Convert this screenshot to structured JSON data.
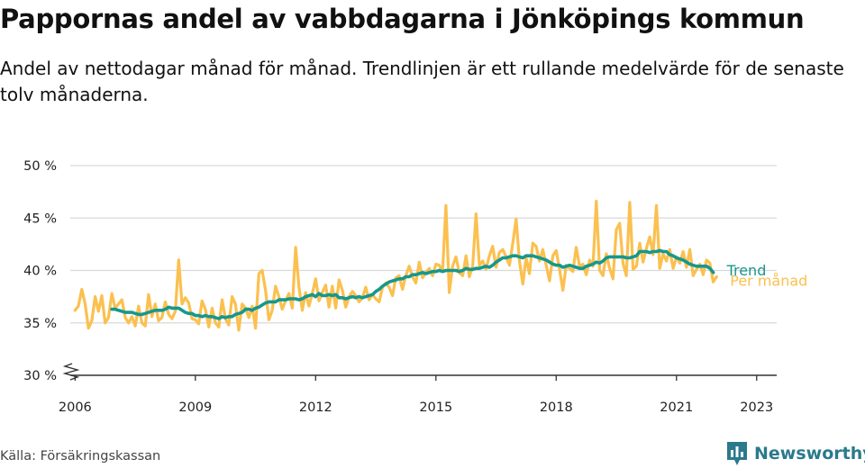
{
  "header": {
    "title": "Pappornas andel av vabbdagarna i Jönköpings kommun",
    "subtitle": "Andel av nettodagar månad för månad. Trendlinjen är ett rullande medelvärde för de senaste tolv månaderna."
  },
  "footer": {
    "source": "Källa: Försäkringskassan",
    "brand": "Newsworthy"
  },
  "colors": {
    "monthly": "#fbc04f",
    "trend": "#17978c",
    "grid": "#d9d9d9",
    "axis": "#333333",
    "brand": "#2a7a8c"
  },
  "chart_data": {
    "type": "line",
    "title": "Pappornas andel av vabbdagarna i Jönköpings kommun",
    "xlabel": "",
    "ylabel": "",
    "y_unit": "%",
    "ylim": [
      30,
      50
    ],
    "y_ticks": [
      "30 %",
      "35 %",
      "40 %",
      "45 %",
      "50 %"
    ],
    "y_tick_values": [
      30,
      35,
      40,
      45,
      50
    ],
    "x_ticks": [
      "2006",
      "2009",
      "2012",
      "2015",
      "2018",
      "2021",
      "2023"
    ],
    "x_tick_values": [
      2006,
      2009,
      2012,
      2015,
      2018,
      2021,
      2023
    ],
    "xlim": [
      2005.88,
      2023.5
    ],
    "grid": true,
    "series": [
      {
        "name": "Per månad",
        "x_start": 2006.0,
        "x_step": 0.0833333,
        "values": [
          36.2,
          36.6,
          38.2,
          36.8,
          34.5,
          35.2,
          37.5,
          36.1,
          37.6,
          35.0,
          35.5,
          37.8,
          36.4,
          36.8,
          37.2,
          35.5,
          35.0,
          35.6,
          34.7,
          36.6,
          35.0,
          34.7,
          37.7,
          35.6,
          36.8,
          35.2,
          35.5,
          37.0,
          35.8,
          35.4,
          36.1,
          41.0,
          36.8,
          37.4,
          36.9,
          35.4,
          35.3,
          34.9,
          37.1,
          36.3,
          34.6,
          36.4,
          35.0,
          34.6,
          37.2,
          35.4,
          34.8,
          37.5,
          36.8,
          34.3,
          36.8,
          36.4,
          35.5,
          36.6,
          34.5,
          39.7,
          40.0,
          38.1,
          35.3,
          36.2,
          38.5,
          37.5,
          36.3,
          37.1,
          37.8,
          36.4,
          42.2,
          38.4,
          36.2,
          37.9,
          36.6,
          37.8,
          39.2,
          37.1,
          37.9,
          38.6,
          36.5,
          38.5,
          36.4,
          39.1,
          38.1,
          36.5,
          37.5,
          38.0,
          37.6,
          37.0,
          37.4,
          38.4,
          37.2,
          37.7,
          37.3,
          37.0,
          38.4,
          38.8,
          38.4,
          37.6,
          39.3,
          39.5,
          38.2,
          39.5,
          40.4,
          39.4,
          38.8,
          40.8,
          39.3,
          39.8,
          40.2,
          39.5,
          40.6,
          40.5,
          39.9,
          46.2,
          37.9,
          40.4,
          41.3,
          39.8,
          39.5,
          41.4,
          39.4,
          40.4,
          45.4,
          40.5,
          40.9,
          40.1,
          41.4,
          42.3,
          40.3,
          41.7,
          42.0,
          41.3,
          40.5,
          42.6,
          44.9,
          40.9,
          38.7,
          41.2,
          39.7,
          42.6,
          42.3,
          40.9,
          42.0,
          40.5,
          39.0,
          41.4,
          41.9,
          40.1,
          38.1,
          40.5,
          40.2,
          39.9,
          42.2,
          40.4,
          40.6,
          39.6,
          41.0,
          40.4,
          46.6,
          40.0,
          39.5,
          41.6,
          40.2,
          39.2,
          43.9,
          44.5,
          40.7,
          39.5,
          46.5,
          40.1,
          40.4,
          42.6,
          40.8,
          42.1,
          43.2,
          41.5,
          46.2,
          40.2,
          41.6,
          40.9,
          42.0,
          40.2,
          41.3,
          40.7,
          41.8,
          40.3,
          42.0,
          39.5,
          40.1,
          40.6,
          39.6,
          41.0,
          40.7,
          38.9,
          39.4
        ]
      },
      {
        "name": "Trend",
        "x_start": 2006.917,
        "x_step": 0.0833333,
        "values": [
          36.3,
          36.3,
          36.2,
          36.1,
          36.0,
          36.0,
          36.0,
          35.9,
          35.8,
          35.8,
          35.9,
          36.0,
          36.1,
          36.2,
          36.2,
          36.2,
          36.3,
          36.5,
          36.4,
          36.4,
          36.4,
          36.2,
          36.0,
          35.9,
          35.9,
          35.7,
          35.7,
          35.6,
          35.7,
          35.6,
          35.6,
          35.5,
          35.4,
          35.6,
          35.5,
          35.6,
          35.6,
          35.8,
          35.9,
          36.0,
          36.3,
          36.3,
          36.2,
          36.4,
          36.5,
          36.7,
          36.9,
          37.0,
          37.0,
          37.0,
          37.2,
          37.2,
          37.2,
          37.3,
          37.3,
          37.3,
          37.2,
          37.3,
          37.5,
          37.6,
          37.7,
          37.5,
          37.8,
          37.6,
          37.6,
          37.7,
          37.6,
          37.7,
          37.4,
          37.4,
          37.3,
          37.4,
          37.5,
          37.4,
          37.5,
          37.4,
          37.5,
          37.6,
          37.7,
          38.0,
          38.2,
          38.5,
          38.7,
          38.9,
          39.0,
          39.1,
          39.2,
          39.2,
          39.4,
          39.4,
          39.6,
          39.6,
          39.7,
          39.8,
          39.7,
          39.8,
          39.9,
          39.9,
          40.0,
          39.9,
          40.0,
          40.0,
          40.0,
          40.0,
          39.9,
          40.0,
          40.2,
          40.1,
          40.1,
          40.2,
          40.2,
          40.3,
          40.4,
          40.3,
          40.5,
          40.8,
          41.0,
          41.2,
          41.2,
          41.3,
          41.4,
          41.4,
          41.3,
          41.2,
          41.4,
          41.4,
          41.4,
          41.3,
          41.2,
          41.1,
          41.0,
          40.8,
          40.6,
          40.5,
          40.5,
          40.3,
          40.4,
          40.5,
          40.4,
          40.3,
          40.2,
          40.2,
          40.4,
          40.5,
          40.6,
          40.8,
          40.7,
          40.9,
          41.2,
          41.3,
          41.3,
          41.3,
          41.3,
          41.3,
          41.2,
          41.2,
          41.3,
          41.4,
          41.8,
          41.8,
          41.8,
          41.7,
          41.8,
          41.8,
          41.9,
          41.8,
          41.8,
          41.5,
          41.4,
          41.2,
          41.1,
          41.0,
          40.8,
          40.6,
          40.5,
          40.4,
          40.4,
          40.4,
          40.4,
          40.2,
          39.8
        ]
      }
    ],
    "axis_break": true
  }
}
